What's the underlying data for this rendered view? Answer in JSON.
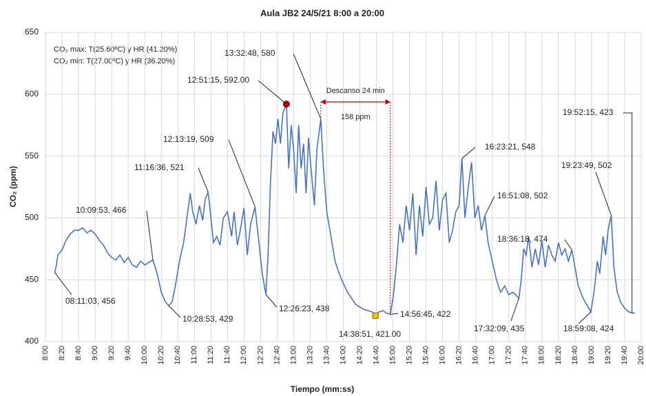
{
  "chart_data": {
    "type": "line",
    "title": "Aula JB2   24/5/21 8:00 a 20:00",
    "xlabel": "Tiempo (mm:ss)",
    "ylabel": "CO₂ (ppm)",
    "notes": [
      "CO₂ max: T(25.60ºC) y HR (41.20%)",
      "CO₂ min: T(27.00ºC) y HR (36.20%)"
    ],
    "rest_label": "Descanso 24 min",
    "rest_delta": "158 ppm",
    "xlim": [
      "8:00",
      "20:00"
    ],
    "xticks": [
      "8:00",
      "8:20",
      "8:40",
      "9:00",
      "9:20",
      "9:40",
      "10:00",
      "10:20",
      "10:40",
      "11:00",
      "11:20",
      "11:40",
      "12:00",
      "12:20",
      "12:40",
      "13:00",
      "13:20",
      "13:40",
      "14:00",
      "14:20",
      "14:40",
      "15:00",
      "15:20",
      "15:40",
      "16:00",
      "16:20",
      "16:40",
      "17:00",
      "17:20",
      "17:40",
      "18:00",
      "18:20",
      "18:40",
      "19:00",
      "19:20",
      "19:40",
      "20:00"
    ],
    "ylim": [
      400,
      650
    ],
    "yticks": [
      400,
      450,
      500,
      550,
      600,
      650
    ],
    "grid": true,
    "series": [
      {
        "name": "CO₂",
        "color": "#4472c4",
        "x": [
          "08:11:03",
          "08:13",
          "08:15",
          "08:20",
          "08:25",
          "08:30",
          "08:35",
          "08:40",
          "08:45",
          "08:50",
          "08:55",
          "09:00",
          "09:05",
          "09:10",
          "09:15",
          "09:20",
          "09:25",
          "09:30",
          "09:35",
          "09:40",
          "09:45",
          "09:50",
          "09:55",
          "10:00",
          "10:05",
          "10:09:53",
          "10:15",
          "10:20",
          "10:25",
          "10:28:53",
          "10:33",
          "10:37",
          "10:42",
          "10:47",
          "10:52",
          "10:55",
          "10:58",
          "11:02",
          "11:06",
          "11:10",
          "11:13",
          "11:16:36",
          "11:20",
          "11:23",
          "11:27",
          "11:31",
          "11:35",
          "11:40",
          "11:45",
          "11:48",
          "11:52",
          "11:56",
          "12:00",
          "12:04",
          "12:08",
          "12:13:19",
          "12:18",
          "12:22",
          "12:26:23",
          "12:29",
          "12:32",
          "12:35",
          "12:38",
          "12:41",
          "12:44",
          "12:47",
          "12:51:15",
          "12:54",
          "12:57",
          "13:00",
          "13:03",
          "13:06",
          "13:09",
          "13:12",
          "13:15",
          "13:18",
          "13:21",
          "13:25",
          "13:28",
          "13:32:48",
          "13:36",
          "13:40",
          "13:45",
          "13:50",
          "13:55",
          "14:00",
          "14:05",
          "14:10",
          "14:15",
          "14:20",
          "14:25",
          "14:30",
          "14:35",
          "14:38:51",
          "14:43",
          "14:48",
          "14:52",
          "14:56:45",
          "15:00",
          "15:04",
          "15:08",
          "15:12",
          "15:16",
          "15:20",
          "15:24",
          "15:28",
          "15:32",
          "15:36",
          "15:40",
          "15:44",
          "15:48",
          "15:52",
          "15:56",
          "16:00",
          "16:04",
          "16:08",
          "16:12",
          "16:16",
          "16:20",
          "16:23:21",
          "16:27",
          "16:31",
          "16:35",
          "16:39",
          "16:43",
          "16:47",
          "16:51:08",
          "16:55",
          "17:00",
          "17:05",
          "17:10",
          "17:15",
          "17:20",
          "17:25",
          "17:32:09",
          "17:35",
          "17:38",
          "17:41",
          "17:44",
          "17:48",
          "17:52",
          "17:56",
          "18:00",
          "18:04",
          "18:08",
          "18:12",
          "18:16",
          "18:20",
          "18:24",
          "18:28",
          "18:32",
          "18:36:18",
          "18:40",
          "18:44",
          "18:48",
          "18:52",
          "18:56",
          "18:59:08",
          "19:03",
          "19:07",
          "19:10",
          "19:14",
          "19:17",
          "19:20",
          "19:23:49",
          "19:27",
          "19:31",
          "19:35",
          "19:40",
          "19:45",
          "19:50",
          "19:52:15"
        ],
        "values": [
          456,
          461,
          470,
          474,
          482,
          487,
          490,
          490,
          492,
          488,
          490,
          487,
          482,
          478,
          472,
          468,
          466,
          470,
          464,
          468,
          462,
          460,
          465,
          462,
          464,
          466,
          455,
          440,
          432,
          429,
          432,
          445,
          465,
          480,
          505,
          520,
          505,
          495,
          510,
          498,
          515,
          521,
          500,
          480,
          485,
          478,
          500,
          505,
          485,
          505,
          478,
          492,
          508,
          470,
          495,
          509,
          480,
          455,
          438,
          470,
          530,
          570,
          560,
          580,
          560,
          585,
          592,
          540,
          575,
          555,
          520,
          575,
          540,
          560,
          520,
          565,
          540,
          510,
          555,
          580,
          540,
          505,
          485,
          465,
          455,
          447,
          440,
          435,
          430,
          428,
          426,
          425,
          424,
          421,
          424,
          425,
          423,
          422,
          435,
          460,
          495,
          480,
          510,
          490,
          520,
          470,
          510,
          485,
          525,
          495,
          500,
          530,
          490,
          515,
          520,
          480,
          490,
          505,
          510,
          548,
          500,
          525,
          545,
          500,
          510,
          490,
          502,
          480,
          465,
          450,
          440,
          445,
          438,
          440,
          435,
          450,
          475,
          470,
          485,
          460,
          475,
          462,
          482,
          460,
          478,
          470,
          465,
          480,
          470,
          475,
          465,
          474,
          460,
          445,
          438,
          432,
          428,
          424,
          440,
          465,
          455,
          485,
          470,
          490,
          502,
          460,
          440,
          432,
          427,
          424,
          423,
          423
        ]
      }
    ],
    "max_marker": {
      "color": "#c00000"
    },
    "min_marker": {
      "color": "#ffc000"
    },
    "annotations": [
      "08:11:03, 456",
      "10:09:53, 466",
      "10:28:53, 429",
      "11:16:36, 521",
      "12:13:19, 509",
      "12:26:23, 438",
      "12:51:15, 592.00",
      "13:32:48, 580",
      "14:38:51, 421.00",
      "14:56:45, 422",
      "16:23:21, 548",
      "16:51:08, 502",
      "17:32:09, 435",
      "18:36:18, 474",
      "18:59:08, 424",
      "19:23:49, 502",
      "19:52:15, 423"
    ]
  }
}
